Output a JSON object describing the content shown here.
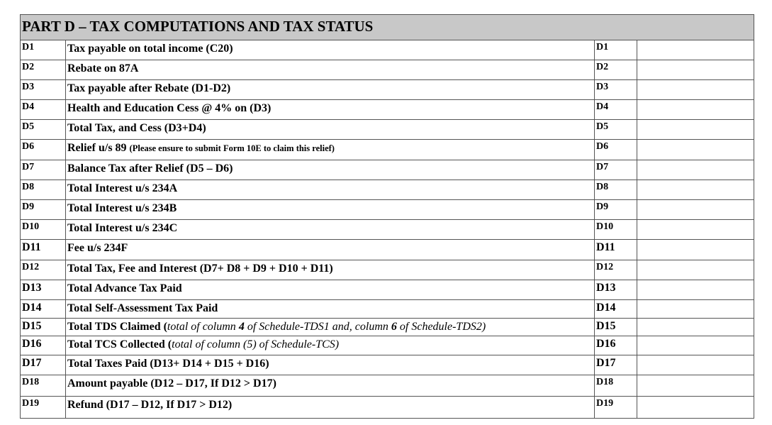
{
  "title": "PART D – TAX COMPUTATIONS AND TAX STATUS",
  "rows": [
    {
      "code": "D1",
      "parts": [
        {
          "text": "Tax payable on total income (C20)",
          "style": ""
        }
      ],
      "value": ""
    },
    {
      "code": "D2",
      "parts": [
        {
          "text": "Rebate on 87A",
          "style": ""
        }
      ],
      "value": ""
    },
    {
      "code": "D3",
      "parts": [
        {
          "text": "Tax payable after Rebate (D1-D2)",
          "style": ""
        }
      ],
      "value": ""
    },
    {
      "code": "D4",
      "parts": [
        {
          "text": "Health and Education Cess @ 4% on (D3)",
          "style": ""
        }
      ],
      "value": ""
    },
    {
      "code": "D5",
      "parts": [
        {
          "text": "Total Tax, and Cess (D3+D4)",
          "style": ""
        }
      ],
      "value": ""
    },
    {
      "code": "D6",
      "parts": [
        {
          "text": "Relief u/s 89 ",
          "style": ""
        },
        {
          "text": "(Please ensure to submit Form 10E to claim this relief)",
          "style": "small"
        }
      ],
      "value": ""
    },
    {
      "code": "D7",
      "parts": [
        {
          "text": "Balance Tax after Relief  (D5 – D6)",
          "style": ""
        }
      ],
      "value": ""
    },
    {
      "code": "D8",
      "parts": [
        {
          "text": "Total Interest u/s 234A",
          "style": ""
        }
      ],
      "value": ""
    },
    {
      "code": "D9",
      "parts": [
        {
          "text": "Total Interest u/s 234B",
          "style": ""
        }
      ],
      "value": ""
    },
    {
      "code": "D10",
      "parts": [
        {
          "text": "Total Interest u/s 234C",
          "style": ""
        }
      ],
      "value": ""
    },
    {
      "code": "D11",
      "parts": [
        {
          "text": "Fee u/s 234F",
          "style": ""
        }
      ],
      "value": ""
    },
    {
      "code": "D12",
      "parts": [
        {
          "text": "Total Tax, Fee and Interest (D7+ D8 + D9 + D10 + D11)",
          "style": ""
        }
      ],
      "value": ""
    },
    {
      "code": "D13",
      "parts": [
        {
          "text": "Total Advance Tax Paid",
          "style": ""
        }
      ],
      "value": ""
    },
    {
      "code": "D14",
      "parts": [
        {
          "text": "Total Self-Assessment Tax Paid",
          "style": ""
        }
      ],
      "value": ""
    },
    {
      "code": "D15",
      "parts": [
        {
          "text": "Total TDS Claimed (",
          "style": ""
        },
        {
          "text": "total of column ",
          "style": "ital"
        },
        {
          "text": "4",
          "style": "bi"
        },
        {
          "text": " of Schedule-TDS1 and, column ",
          "style": "ital"
        },
        {
          "text": "6",
          "style": "bi"
        },
        {
          "text": " of Schedule-TDS2)",
          "style": "ital"
        }
      ],
      "value": ""
    },
    {
      "code": "D16",
      "parts": [
        {
          "text": "Total TCS Collected (",
          "style": ""
        },
        {
          "text": "total of column (5) of Schedule-TCS)",
          "style": "ital"
        }
      ],
      "value": ""
    },
    {
      "code": "D17",
      "parts": [
        {
          "text": "Total Taxes Paid (D13+ D14 + D15 + D16)",
          "style": ""
        }
      ],
      "value": ""
    },
    {
      "code": "D18",
      "parts": [
        {
          "text": "Amount payable (D12 – D17, If D12 > D17)",
          "style": ""
        }
      ],
      "value": ""
    },
    {
      "code": "D19",
      "parts": [
        {
          "text": "Refund (D17 – D12, If D17 > D12)",
          "style": ""
        }
      ],
      "value": ""
    }
  ]
}
